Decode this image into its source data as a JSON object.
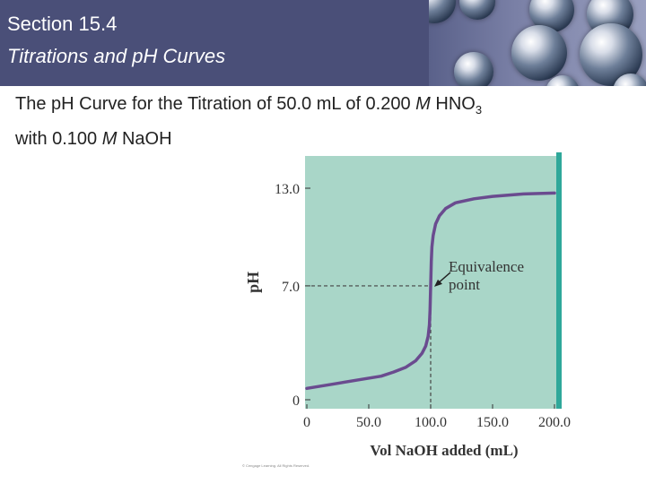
{
  "header": {
    "section": "Section 15.4",
    "topic": "Titrations and pH Curves"
  },
  "slide": {
    "subtitle_prefix": "The pH Curve for the Titration of 50.0 mL of 0.200 ",
    "subtitle_unit1": "M",
    "subtitle_mid": " HNO",
    "subtitle_sub": "3",
    "subtitle_line2_prefix": "with 0.100 ",
    "subtitle_unit2": "M",
    "subtitle_line2_suffix": " NaOH",
    "credit": "© Cengage Learning. All Rights Reserved."
  },
  "chart_data": {
    "type": "line",
    "xlabel": "Vol NaOH added (mL)",
    "ylabel": "pH",
    "xlim": [
      0,
      200
    ],
    "ylim": [
      0,
      13
    ],
    "xticks": [
      "0",
      "50.0",
      "100.0",
      "150.0",
      "200.0"
    ],
    "yticks": [
      "0",
      "7.0",
      "13.0"
    ],
    "xtick_values": [
      0,
      50,
      100,
      150,
      200
    ],
    "ytick_values": [
      0,
      7,
      13
    ],
    "grid": false,
    "series": [
      {
        "x": [
          0,
          20,
          40,
          60,
          70,
          80,
          88,
          93,
          96,
          98,
          99,
          99.5,
          100,
          100.5,
          101,
          102,
          104,
          107,
          112,
          120,
          135,
          150,
          175,
          200
        ],
        "y": [
          0.7,
          0.95,
          1.2,
          1.45,
          1.7,
          2.0,
          2.4,
          2.85,
          3.3,
          3.9,
          4.6,
          5.5,
          7.0,
          8.5,
          9.4,
          10.1,
          10.8,
          11.3,
          11.75,
          12.1,
          12.35,
          12.5,
          12.65,
          12.7
        ]
      }
    ],
    "annotation": {
      "text_line1": "Equivalence",
      "text_line2": "point",
      "x": 100,
      "y": 7.0
    },
    "colors": {
      "plot_bg": "#a9d6c8",
      "curve": "#6a4b8f",
      "right_edge": "#2fa89a"
    }
  }
}
